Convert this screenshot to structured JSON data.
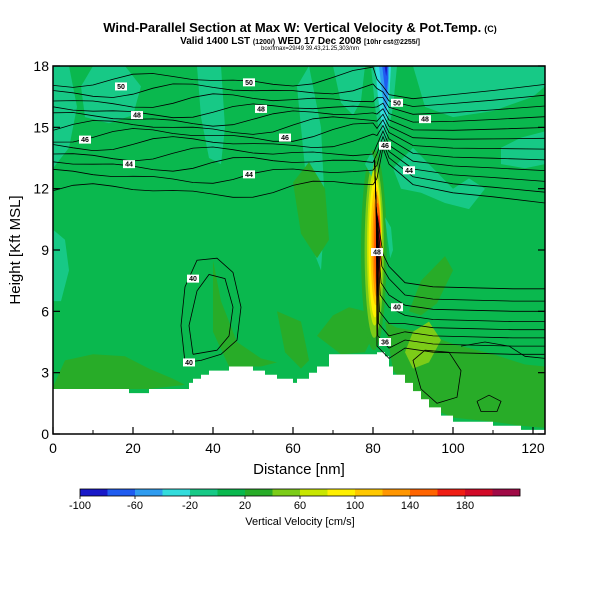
{
  "title": "Wind-Parallel Section at Max W: Vertical Velocity & Pot.Temp.",
  "title_mark": "(C)",
  "subtitle_main": "Valid 1400 LST",
  "subtitle_run": "(1200/)",
  "subtitle_date": "WED 17 Dec 2008",
  "subtitle_extra": "[10hr cst@2255/]",
  "subline": "box/fmax=29/49 39.43,21.25,303/nm",
  "colors": {
    "-100": "#1818c8",
    "-80": "#1f5cf0",
    "-60": "#2f9cf0",
    "-40": "#33dcdc",
    "-20": "#17c986",
    "0": "#0ab84e",
    "20": "#28ac28",
    "40": "#7ccc18",
    "60": "#c8e600",
    "80": "#fff000",
    "100": "#ffc800",
    "120": "#ff9600",
    "140": "#ff6400",
    "160": "#f01e14",
    "180": "#d20a28",
    "200": "#a00a46"
  },
  "chart_data": {
    "type": "contour",
    "xlabel": "Distance [nm]",
    "ylabel": "Height [Kft MSL]",
    "xlim": [
      0,
      123
    ],
    "ylim": [
      0,
      18
    ],
    "xticks": [
      0,
      20,
      40,
      60,
      80,
      100,
      120
    ],
    "yticks": [
      0,
      3,
      6,
      9,
      12,
      15,
      18
    ],
    "colorbar": {
      "label": "Vertical Velocity [cm/s]",
      "ticks": [
        -100,
        -60,
        -20,
        20,
        60,
        100,
        140,
        180
      ],
      "levels": [
        -100,
        -80,
        -60,
        -40,
        -20,
        0,
        20,
        40,
        60,
        80,
        100,
        120,
        140,
        160,
        180,
        200
      ]
    },
    "terrain": [
      [
        0,
        2.2
      ],
      [
        19,
        2.2
      ],
      [
        19,
        2.0
      ],
      [
        24,
        2.0
      ],
      [
        24,
        2.2
      ],
      [
        34,
        2.2
      ],
      [
        34,
        2.5
      ],
      [
        35,
        2.5
      ],
      [
        35,
        2.7
      ],
      [
        37,
        2.7
      ],
      [
        37,
        2.9
      ],
      [
        39,
        2.9
      ],
      [
        39,
        3.1
      ],
      [
        44,
        3.1
      ],
      [
        44,
        3.3
      ],
      [
        50,
        3.3
      ],
      [
        50,
        3.1
      ],
      [
        53,
        3.1
      ],
      [
        53,
        2.9
      ],
      [
        56,
        2.9
      ],
      [
        56,
        2.7
      ],
      [
        60,
        2.7
      ],
      [
        60,
        2.5
      ],
      [
        61,
        2.5
      ],
      [
        61,
        2.7
      ],
      [
        64,
        2.7
      ],
      [
        64,
        3.0
      ],
      [
        66,
        3.0
      ],
      [
        66,
        3.3
      ],
      [
        69,
        3.3
      ],
      [
        69,
        3.9
      ],
      [
        81,
        3.9
      ],
      [
        81,
        4.0
      ],
      [
        83,
        4.0
      ],
      [
        83,
        3.8
      ],
      [
        84,
        3.8
      ],
      [
        84,
        3.3
      ],
      [
        85,
        3.3
      ],
      [
        85,
        2.9
      ],
      [
        88,
        2.9
      ],
      [
        88,
        2.5
      ],
      [
        90,
        2.5
      ],
      [
        90,
        2.1
      ],
      [
        92,
        2.1
      ],
      [
        92,
        1.7
      ],
      [
        94,
        1.7
      ],
      [
        94,
        1.3
      ],
      [
        97,
        1.3
      ],
      [
        97,
        0.9
      ],
      [
        100,
        0.9
      ],
      [
        100,
        0.6
      ],
      [
        110,
        0.6
      ],
      [
        110,
        0.4
      ],
      [
        117,
        0.4
      ],
      [
        117,
        0.2
      ],
      [
        123,
        0.2
      ]
    ],
    "isentrope_labels": [
      {
        "text": "50",
        "x": 17,
        "y": 17.0
      },
      {
        "text": "50",
        "x": 49,
        "y": 17.2
      },
      {
        "text": "48",
        "x": 21,
        "y": 15.6
      },
      {
        "text": "48",
        "x": 52,
        "y": 15.9
      },
      {
        "text": "46",
        "x": 8,
        "y": 14.4
      },
      {
        "text": "46",
        "x": 58,
        "y": 14.5
      },
      {
        "text": "44",
        "x": 19,
        "y": 13.2
      },
      {
        "text": "44",
        "x": 49,
        "y": 12.7
      },
      {
        "text": "50",
        "x": 86,
        "y": 16.2
      },
      {
        "text": "48",
        "x": 93,
        "y": 15.4
      },
      {
        "text": "46",
        "x": 83,
        "y": 14.1
      },
      {
        "text": "44",
        "x": 89,
        "y": 12.9
      },
      {
        "text": "48",
        "x": 81,
        "y": 8.9
      },
      {
        "text": "40",
        "x": 86,
        "y": 6.2
      },
      {
        "text": "36",
        "x": 83,
        "y": 4.5
      },
      {
        "text": "40",
        "x": 35,
        "y": 7.6
      },
      {
        "text": "40",
        "x": 34,
        "y": 3.5
      }
    ]
  }
}
